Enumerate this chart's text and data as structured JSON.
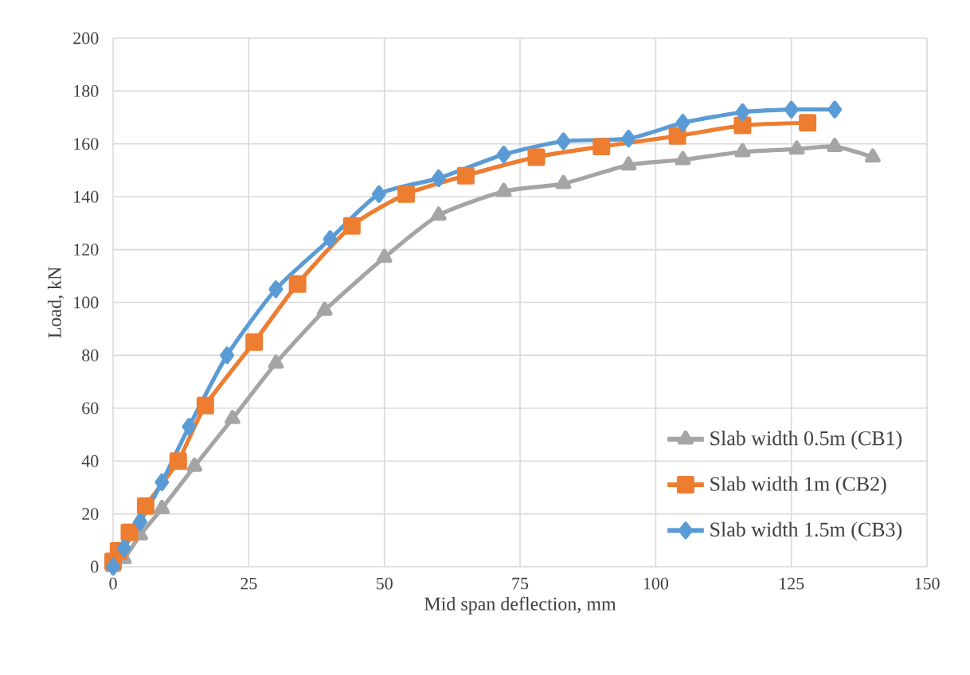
{
  "chart_data": {
    "type": "line",
    "xlabel": "Mid span deflection, mm",
    "ylabel": "Load, kN",
    "xlim": [
      0,
      150
    ],
    "ylim": [
      0,
      200
    ],
    "xticks": [
      0,
      25,
      50,
      75,
      100,
      125,
      150
    ],
    "yticks": [
      0,
      20,
      40,
      60,
      80,
      100,
      120,
      140,
      160,
      180,
      200
    ],
    "grid": true,
    "legend": "bottom right",
    "line_style": "solid",
    "series": [
      {
        "name": "Slab width 0.5m (CB1)",
        "color": "#a5a5a5",
        "marker": "triangle",
        "x": [
          0,
          2,
          5,
          9,
          15,
          22,
          30,
          39,
          50,
          60,
          72,
          83,
          95,
          105,
          116,
          126,
          133,
          140
        ],
        "values": [
          0,
          3,
          12,
          22,
          38,
          56,
          77,
          97,
          117,
          133,
          142,
          145,
          152,
          154,
          157,
          158,
          159,
          155
        ]
      },
      {
        "name": "Slab width 1m (CB2)",
        "color": "#ed7d31",
        "marker": "square",
        "x": [
          0,
          1,
          3,
          6,
          12,
          17,
          26,
          34,
          44,
          54,
          65,
          78,
          90,
          104,
          116,
          128
        ],
        "values": [
          2,
          6,
          13,
          23,
          40,
          61,
          85,
          107,
          129,
          141,
          148,
          155,
          159,
          163,
          167,
          168
        ]
      },
      {
        "name": "Slab width 1.5m (CB3)",
        "color": "#5b9bd5",
        "marker": "diamond",
        "x": [
          0,
          2,
          5,
          9,
          14,
          21,
          30,
          40,
          49,
          60,
          72,
          83,
          95,
          105,
          116,
          125,
          133
        ],
        "values": [
          0,
          7,
          17,
          32,
          53,
          80,
          105,
          124,
          141,
          147,
          156,
          161,
          162,
          168,
          172,
          173,
          173
        ]
      }
    ]
  }
}
